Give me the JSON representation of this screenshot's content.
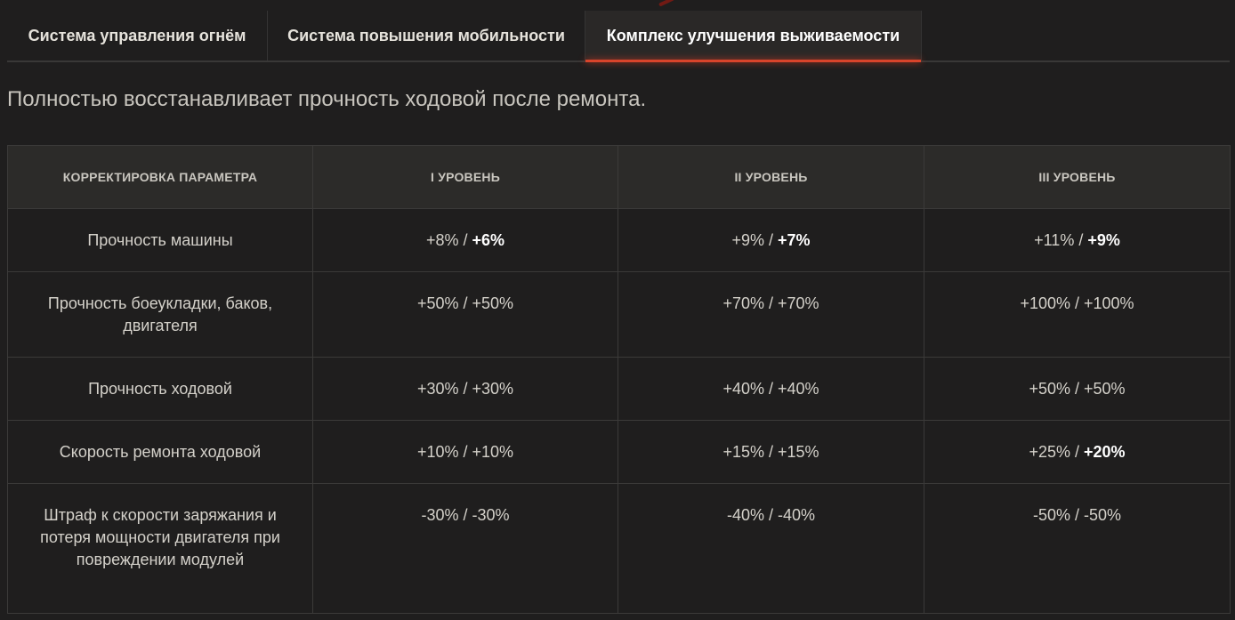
{
  "tabs": [
    {
      "label": "Система управления огнём",
      "active": false
    },
    {
      "label": "Система повышения мобильности",
      "active": false
    },
    {
      "label": "Комплекс улучшения выживаемости",
      "active": true
    }
  ],
  "description": "Полностью восстанавливает прочность ходовой после ремонта.",
  "table": {
    "headers": [
      "КОРРЕКТИРОВКА ПАРАМЕТРА",
      "I УРОВЕНЬ",
      "II УРОВЕНЬ",
      "III УРОВЕНЬ"
    ],
    "rows": [
      {
        "name": "Прочность машины",
        "levels": [
          {
            "base": "+8% / ",
            "bonus": "+6%"
          },
          {
            "base": "+9% / ",
            "bonus": "+7%"
          },
          {
            "base": "+11% / ",
            "bonus": "+9%"
          }
        ]
      },
      {
        "name": "Прочность боеукладки, баков, двигателя",
        "levels": [
          {
            "base": "+50% / +50%",
            "bonus": ""
          },
          {
            "base": "+70% / +70%",
            "bonus": ""
          },
          {
            "base": "+100% / +100%",
            "bonus": ""
          }
        ]
      },
      {
        "name": "Прочность ходовой",
        "levels": [
          {
            "base": "+30% / +30%",
            "bonus": ""
          },
          {
            "base": "+40% / +40%",
            "bonus": ""
          },
          {
            "base": "+50% / +50%",
            "bonus": ""
          }
        ]
      },
      {
        "name": "Скорость ремонта ходовой",
        "levels": [
          {
            "base": "+10% / +10%",
            "bonus": ""
          },
          {
            "base": "+15% / +15%",
            "bonus": ""
          },
          {
            "base": "+25% / ",
            "bonus": "+20%"
          }
        ]
      },
      {
        "name": "Штраф к скорости заряжания и потеря мощности двигателя при повреждении модулей",
        "levels": [
          {
            "base": "-30% / -30%",
            "bonus": ""
          },
          {
            "base": "-40% / -40%",
            "bonus": ""
          },
          {
            "base": "-50% / -50%",
            "bonus": ""
          }
        ]
      }
    ]
  },
  "colors": {
    "accent": "#d9442b",
    "background": "#1f1e1e",
    "header_bg": "#2c2b29"
  }
}
